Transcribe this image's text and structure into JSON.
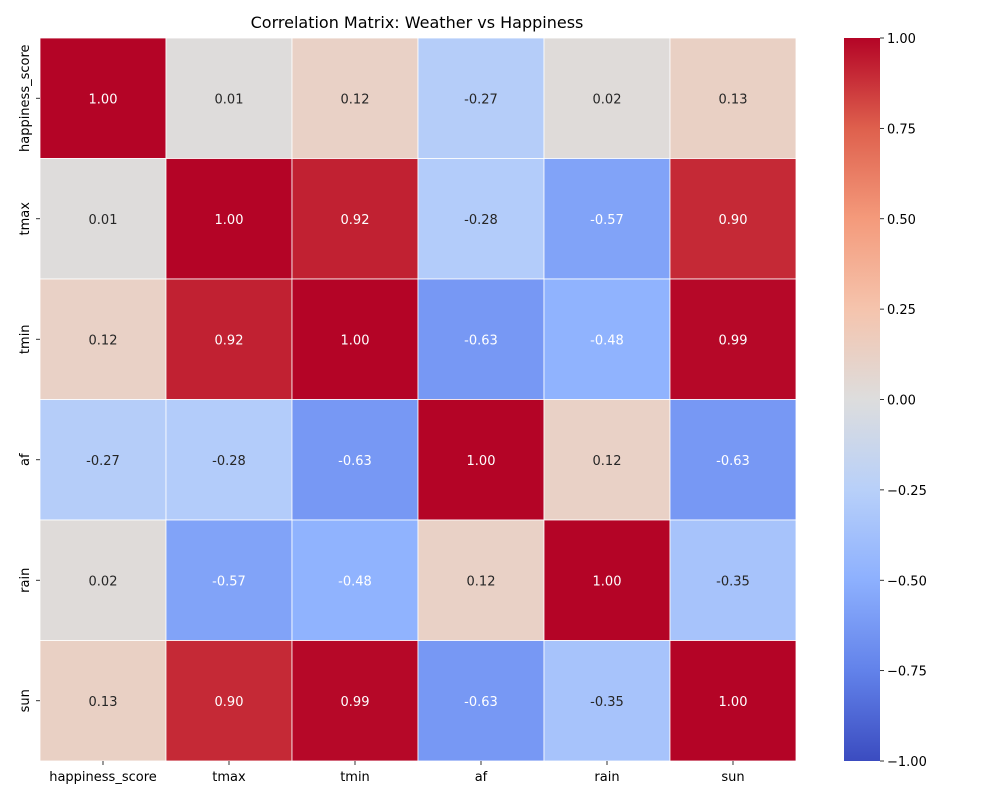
{
  "chart_data": {
    "type": "heatmap",
    "title": "Correlation Matrix: Weather vs Happiness",
    "xlabel": "",
    "ylabel": "",
    "variables": [
      "happiness_score",
      "tmax",
      "tmin",
      "af",
      "rain",
      "sun"
    ],
    "matrix": [
      [
        1.0,
        0.01,
        0.12,
        -0.27,
        0.02,
        0.13
      ],
      [
        0.01,
        1.0,
        0.92,
        -0.28,
        -0.57,
        0.9
      ],
      [
        0.12,
        0.92,
        1.0,
        -0.63,
        -0.48,
        0.99
      ],
      [
        -0.27,
        -0.28,
        -0.63,
        1.0,
        0.12,
        -0.63
      ],
      [
        0.02,
        -0.57,
        -0.48,
        0.12,
        1.0,
        -0.35
      ],
      [
        0.13,
        0.9,
        0.99,
        -0.63,
        -0.35,
        1.0
      ]
    ],
    "value_format": "2 decimals",
    "colormap": "coolwarm",
    "vmin": -1.0,
    "vmax": 1.0,
    "colorbar_ticks": [
      "1.00",
      "0.75",
      "0.50",
      "0.25",
      "0.00",
      "−0.25",
      "−0.50",
      "−0.75",
      "−1.00"
    ],
    "colorbar_tick_values": [
      1.0,
      0.75,
      0.5,
      0.25,
      0.0,
      -0.25,
      -0.5,
      -0.75,
      -1.0
    ],
    "colors": {
      "cold_end": "#3b4cc0",
      "neutral": "#dddddd",
      "warm_end": "#b40426",
      "grid_lines": "#ffffff",
      "dark_text": "#262626",
      "light_text": "#ffffff"
    },
    "grid": false,
    "legend": "colorbar-right"
  }
}
